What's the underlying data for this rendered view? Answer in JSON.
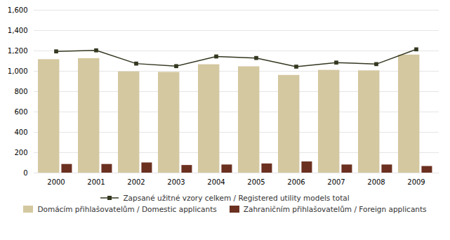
{
  "chart_data": {
    "type": "bar",
    "categories": [
      "2000",
      "2001",
      "2002",
      "2003",
      "2004",
      "2005",
      "2006",
      "2007",
      "2008",
      "2009"
    ],
    "series": [
      {
        "name": "Domácím přihlašovatelům / Domestic applicants",
        "type": "bar",
        "color": "#d4c8a0",
        "values": [
          1115,
          1125,
          995,
          990,
          1065,
          1045,
          960,
          1010,
          1005,
          1160
        ]
      },
      {
        "name": "Zahraničním přihlašovatelům / Foreign applicants",
        "type": "bar",
        "color": "#6b3020",
        "values": [
          85,
          85,
          100,
          75,
          80,
          90,
          110,
          80,
          80,
          65
        ]
      },
      {
        "name": "Zapsané užitné vzory celkem / Registered utility models total",
        "type": "line",
        "color": "#333820",
        "marker": "square",
        "line_style": "solid",
        "values": [
          1195,
          1205,
          1075,
          1050,
          1145,
          1130,
          1045,
          1085,
          1070,
          1215
        ]
      }
    ],
    "ylim": [
      0,
      1600
    ],
    "yticks": [
      0,
      200,
      400,
      600,
      800,
      1000,
      1200,
      1400,
      1600
    ],
    "grid": true,
    "legend": "bottom"
  }
}
